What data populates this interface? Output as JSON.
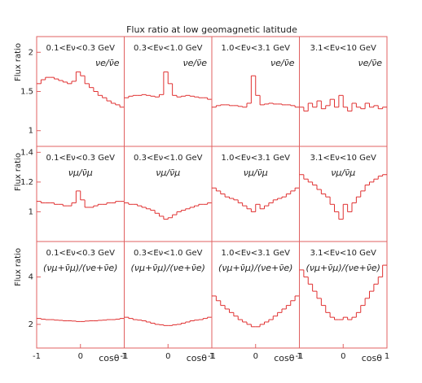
{
  "title": "Flux ratio at low geomagnetic latitude",
  "chart_data": [
    {
      "type": "histogram",
      "energy_range": "0.1<Eν<0.3 GeV",
      "ratio": "νe/ν̄e",
      "ylabel": "Flux ratio",
      "color": "#e03030",
      "bins": [
        -1,
        -0.9,
        -0.8,
        -0.7,
        -0.6,
        -0.5,
        -0.4,
        -0.3,
        -0.2,
        -0.1,
        0,
        0.1,
        0.2,
        0.3,
        0.4,
        0.5,
        0.6,
        0.7,
        0.8,
        0.9,
        1
      ],
      "values": [
        1.6,
        1.65,
        1.68,
        1.68,
        1.66,
        1.64,
        1.62,
        1.6,
        1.63,
        1.75,
        1.7,
        1.6,
        1.55,
        1.5,
        1.45,
        1.42,
        1.38,
        1.35,
        1.33,
        1.3
      ],
      "xlim": [
        -1,
        1
      ],
      "ylim": [
        0.8,
        2.2
      ],
      "yticks": [
        1,
        1.5,
        2
      ]
    },
    {
      "type": "histogram",
      "energy_range": "0.3<Eν<1.0 GeV",
      "ratio": "νe/ν̄e",
      "color": "#e03030",
      "bins": [
        -1,
        -0.9,
        -0.8,
        -0.7,
        -0.6,
        -0.5,
        -0.4,
        -0.3,
        -0.2,
        -0.1,
        0,
        0.1,
        0.2,
        0.3,
        0.4,
        0.5,
        0.6,
        0.7,
        0.8,
        0.9,
        1
      ],
      "values": [
        1.42,
        1.44,
        1.45,
        1.45,
        1.46,
        1.45,
        1.44,
        1.43,
        1.46,
        1.75,
        1.6,
        1.45,
        1.43,
        1.44,
        1.45,
        1.44,
        1.43,
        1.42,
        1.42,
        1.4
      ],
      "xlim": [
        -1,
        1
      ],
      "ylim": [
        0.8,
        2.2
      ]
    },
    {
      "type": "histogram",
      "energy_range": "1.0<Eν<3.1 GeV",
      "ratio": "νe/ν̄e",
      "color": "#e03030",
      "bins": [
        -1,
        -0.9,
        -0.8,
        -0.7,
        -0.6,
        -0.5,
        -0.4,
        -0.3,
        -0.2,
        -0.1,
        0,
        0.1,
        0.2,
        0.3,
        0.4,
        0.5,
        0.6,
        0.7,
        0.8,
        0.9,
        1
      ],
      "values": [
        1.3,
        1.32,
        1.33,
        1.33,
        1.32,
        1.32,
        1.31,
        1.3,
        1.35,
        1.7,
        1.45,
        1.33,
        1.34,
        1.35,
        1.34,
        1.34,
        1.33,
        1.33,
        1.32,
        1.3
      ],
      "xlim": [
        -1,
        1
      ],
      "ylim": [
        0.8,
        2.2
      ]
    },
    {
      "type": "histogram",
      "energy_range": "3.1<Eν<10 GeV",
      "ratio": "νe/ν̄e",
      "color": "#e03030",
      "bins": [
        -1,
        -0.9,
        -0.8,
        -0.7,
        -0.6,
        -0.5,
        -0.4,
        -0.3,
        -0.2,
        -0.1,
        0,
        0.1,
        0.2,
        0.3,
        0.4,
        0.5,
        0.6,
        0.7,
        0.8,
        0.9,
        1
      ],
      "values": [
        1.3,
        1.25,
        1.35,
        1.3,
        1.38,
        1.28,
        1.32,
        1.4,
        1.3,
        1.45,
        1.3,
        1.25,
        1.35,
        1.3,
        1.28,
        1.35,
        1.3,
        1.32,
        1.28,
        1.3
      ],
      "xlim": [
        -1,
        1
      ],
      "ylim": [
        0.8,
        2.2
      ]
    },
    {
      "type": "histogram",
      "energy_range": "0.1<Eν<0.3 GeV",
      "ratio": "νμ/ν̄μ",
      "ylabel": "Flux ratio",
      "color": "#e03030",
      "bins": [
        -1,
        -0.9,
        -0.8,
        -0.7,
        -0.6,
        -0.5,
        -0.4,
        -0.3,
        -0.2,
        -0.1,
        0,
        0.1,
        0.2,
        0.3,
        0.4,
        0.5,
        0.6,
        0.7,
        0.8,
        0.9,
        1
      ],
      "values": [
        1.07,
        1.06,
        1.06,
        1.06,
        1.05,
        1.05,
        1.04,
        1.04,
        1.06,
        1.14,
        1.08,
        1.03,
        1.03,
        1.04,
        1.05,
        1.05,
        1.06,
        1.06,
        1.07,
        1.07
      ],
      "xlim": [
        -1,
        1
      ],
      "ylim": [
        0.8,
        1.44
      ],
      "yticks": [
        1,
        1.2,
        1.4
      ]
    },
    {
      "type": "histogram",
      "energy_range": "0.3<Eν<1.0 GeV",
      "ratio": "νμ/ν̄μ",
      "color": "#e03030",
      "bins": [
        -1,
        -0.9,
        -0.8,
        -0.7,
        -0.6,
        -0.5,
        -0.4,
        -0.3,
        -0.2,
        -0.1,
        0,
        0.1,
        0.2,
        0.3,
        0.4,
        0.5,
        0.6,
        0.7,
        0.8,
        0.9,
        1
      ],
      "values": [
        1.06,
        1.05,
        1.05,
        1.04,
        1.03,
        1.02,
        1.01,
        0.99,
        0.97,
        0.95,
        0.96,
        0.98,
        1.0,
        1.01,
        1.02,
        1.03,
        1.04,
        1.05,
        1.05,
        1.06
      ],
      "xlim": [
        -1,
        1
      ],
      "ylim": [
        0.8,
        1.44
      ]
    },
    {
      "type": "histogram",
      "energy_range": "1.0<Eν<3.1 GeV",
      "ratio": "νμ/ν̄μ",
      "color": "#e03030",
      "bins": [
        -1,
        -0.9,
        -0.8,
        -0.7,
        -0.6,
        -0.5,
        -0.4,
        -0.3,
        -0.2,
        -0.1,
        0,
        0.1,
        0.2,
        0.3,
        0.4,
        0.5,
        0.6,
        0.7,
        0.8,
        0.9,
        1
      ],
      "values": [
        1.16,
        1.14,
        1.12,
        1.1,
        1.09,
        1.08,
        1.06,
        1.04,
        1.02,
        1.0,
        1.05,
        1.02,
        1.04,
        1.06,
        1.08,
        1.09,
        1.1,
        1.12,
        1.14,
        1.16
      ],
      "xlim": [
        -1,
        1
      ],
      "ylim": [
        0.8,
        1.44
      ]
    },
    {
      "type": "histogram",
      "energy_range": "3.1<Eν<10 GeV",
      "ratio": "νμ/ν̄μ",
      "color": "#e03030",
      "bins": [
        -1,
        -0.9,
        -0.8,
        -0.7,
        -0.6,
        -0.5,
        -0.4,
        -0.3,
        -0.2,
        -0.1,
        0,
        0.1,
        0.2,
        0.3,
        0.4,
        0.5,
        0.6,
        0.7,
        0.8,
        0.9,
        1
      ],
      "values": [
        1.25,
        1.22,
        1.2,
        1.18,
        1.15,
        1.12,
        1.1,
        1.05,
        1.0,
        0.95,
        1.05,
        1.0,
        1.06,
        1.1,
        1.14,
        1.18,
        1.2,
        1.22,
        1.24,
        1.25
      ],
      "xlim": [
        -1,
        1
      ],
      "ylim": [
        0.8,
        1.44
      ]
    },
    {
      "type": "histogram",
      "energy_range": "0.1<Eν<0.3 GeV",
      "ratio": "(νμ+ν̄μ)/(νe+ν̄e)",
      "ylabel": "Flux ratio",
      "xlabel": "cosθ",
      "color": "#e03030",
      "bins": [
        -1,
        -0.9,
        -0.8,
        -0.7,
        -0.6,
        -0.5,
        -0.4,
        -0.3,
        -0.2,
        -0.1,
        0,
        0.1,
        0.2,
        0.3,
        0.4,
        0.5,
        0.6,
        0.7,
        0.8,
        0.9,
        1
      ],
      "values": [
        2.25,
        2.22,
        2.2,
        2.2,
        2.18,
        2.17,
        2.15,
        2.15,
        2.14,
        2.12,
        2.12,
        2.14,
        2.15,
        2.15,
        2.17,
        2.18,
        2.2,
        2.2,
        2.22,
        2.25
      ],
      "xlim": [
        -1,
        1
      ],
      "ylim": [
        1,
        5.5
      ],
      "yticks": [
        2,
        4
      ],
      "xticks": [
        -1,
        0,
        1
      ]
    },
    {
      "type": "histogram",
      "energy_range": "0.3<Eν<1.0 GeV",
      "ratio": "(νμ+ν̄μ)/(νe+ν̄e)",
      "xlabel": "cosθ",
      "color": "#e03030",
      "bins": [
        -1,
        -0.9,
        -0.8,
        -0.7,
        -0.6,
        -0.5,
        -0.4,
        -0.3,
        -0.2,
        -0.1,
        0,
        0.1,
        0.2,
        0.3,
        0.4,
        0.5,
        0.6,
        0.7,
        0.8,
        0.9,
        1
      ],
      "values": [
        2.3,
        2.25,
        2.2,
        2.18,
        2.15,
        2.1,
        2.05,
        2.0,
        1.98,
        1.95,
        1.95,
        1.98,
        2.0,
        2.05,
        2.1,
        2.15,
        2.18,
        2.2,
        2.25,
        2.3
      ],
      "xlim": [
        -1,
        1
      ],
      "ylim": [
        1,
        5.5
      ],
      "xticks": [
        -1,
        0,
        1
      ]
    },
    {
      "type": "histogram",
      "energy_range": "1.0<Eν<3.1 GeV",
      "ratio": "(νμ+ν̄μ)/(νe+ν̄e)",
      "xlabel": "cosθ",
      "color": "#e03030",
      "bins": [
        -1,
        -0.9,
        -0.8,
        -0.7,
        -0.6,
        -0.5,
        -0.4,
        -0.3,
        -0.2,
        -0.1,
        0,
        0.1,
        0.2,
        0.3,
        0.4,
        0.5,
        0.6,
        0.7,
        0.8,
        0.9,
        1
      ],
      "values": [
        3.2,
        3.0,
        2.8,
        2.65,
        2.5,
        2.35,
        2.2,
        2.1,
        2.0,
        1.9,
        1.9,
        2.0,
        2.1,
        2.2,
        2.35,
        2.5,
        2.65,
        2.8,
        3.0,
        3.2
      ],
      "xlim": [
        -1,
        1
      ],
      "ylim": [
        1,
        5.5
      ],
      "xticks": [
        -1,
        0,
        1
      ]
    },
    {
      "type": "histogram",
      "energy_range": "3.1<Eν<10 GeV",
      "ratio": "(νμ+ν̄μ)/(νe+ν̄e)",
      "xlabel": "cosθ",
      "color": "#e03030",
      "bins": [
        -1,
        -0.9,
        -0.8,
        -0.7,
        -0.6,
        -0.5,
        -0.4,
        -0.3,
        -0.2,
        -0.1,
        0,
        0.1,
        0.2,
        0.3,
        0.4,
        0.5,
        0.6,
        0.7,
        0.8,
        0.9,
        1
      ],
      "values": [
        4.3,
        4.0,
        3.7,
        3.4,
        3.1,
        2.8,
        2.5,
        2.3,
        2.2,
        2.2,
        2.3,
        2.2,
        2.3,
        2.5,
        2.8,
        3.1,
        3.4,
        3.7,
        4.0,
        4.5
      ],
      "xlim": [
        -1,
        1
      ],
      "ylim": [
        1,
        5.5
      ],
      "xticks": [
        -1,
        0,
        1
      ]
    }
  ]
}
